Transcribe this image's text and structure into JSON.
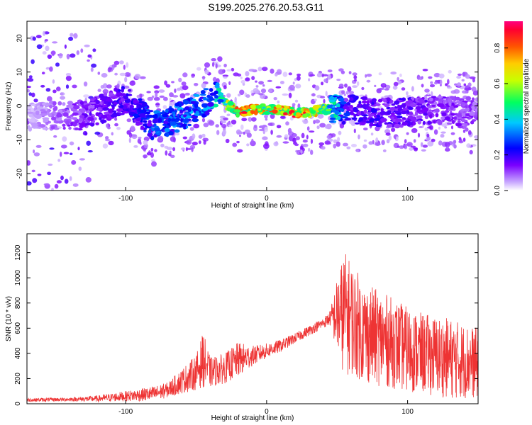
{
  "title": "S199.2025.276.20.53.G11",
  "chart_data": [
    {
      "type": "heatmap",
      "xlabel": "Height of straight line (km)",
      "ylabel": "Frequency (Hz)",
      "xlim": [
        -170,
        150
      ],
      "ylim": [
        -25,
        25
      ],
      "xticks": [
        -100,
        0,
        100
      ],
      "xtick_labels": [
        "-100",
        "0",
        "100"
      ],
      "yticks": [
        20,
        10,
        0,
        -10,
        -20
      ],
      "ytick_labels": [
        "20",
        "10",
        "0",
        "-10",
        "-20"
      ],
      "colorbar": {
        "label": "Normalized spectral amplitude",
        "range": [
          0.0,
          0.95
        ],
        "ticks": [
          0.0,
          0.2,
          0.4,
          0.6,
          0.8
        ],
        "tick_labels": [
          "0.0",
          "0.2",
          "0.4",
          "0.6",
          "0.8"
        ]
      },
      "ridge": {
        "description": "amplitude ridge of frequency vs height",
        "x": [
          -170,
          -130,
          -100,
          -80,
          -60,
          -40,
          -35,
          -30,
          -20,
          -10,
          0,
          10,
          20,
          30,
          40,
          60,
          80,
          100,
          120,
          150
        ],
        "y": [
          -3,
          -3,
          2,
          -6,
          -3,
          2,
          4,
          1,
          -2,
          -1,
          -1,
          -1,
          -2,
          -2,
          -1,
          -1,
          -2,
          -2,
          -1,
          -2
        ],
        "amplitude": [
          0.05,
          0.15,
          0.2,
          0.3,
          0.35,
          0.35,
          0.45,
          0.6,
          0.85,
          0.8,
          0.75,
          0.8,
          0.85,
          0.8,
          0.6,
          0.2,
          0.2,
          0.18,
          0.15,
          0.12
        ]
      }
    },
    {
      "type": "line",
      "xlabel": "Height of straight line (km)",
      "ylabel": "SNR (10 * v/v)",
      "xlim": [
        -170,
        150
      ],
      "ylim": [
        0,
        1350
      ],
      "xticks": [
        -100,
        0,
        100
      ],
      "xtick_labels": [
        "-100",
        "0",
        "100"
      ],
      "yticks": [
        0,
        200,
        400,
        600,
        800,
        1000,
        1200
      ],
      "ytick_labels": [
        "0",
        "200",
        "400",
        "600",
        "800",
        "1000",
        "1200"
      ],
      "color": "#ee3333",
      "envelope": {
        "x": [
          -170,
          -140,
          -120,
          -100,
          -80,
          -70,
          -60,
          -50,
          -45,
          -40,
          -30,
          -20,
          -10,
          0,
          10,
          20,
          30,
          40,
          45,
          50,
          55,
          60,
          70,
          80,
          90,
          100,
          110,
          120,
          130,
          140,
          150
        ],
        "mean": [
          30,
          35,
          40,
          60,
          80,
          110,
          180,
          250,
          350,
          250,
          280,
          350,
          380,
          420,
          460,
          520,
          580,
          640,
          680,
          700,
          720,
          680,
          560,
          520,
          480,
          430,
          400,
          380,
          360,
          340,
          320
        ],
        "amplitude": [
          15,
          15,
          25,
          40,
          60,
          60,
          100,
          140,
          220,
          120,
          120,
          140,
          80,
          60,
          50,
          40,
          40,
          40,
          60,
          300,
          500,
          450,
          400,
          380,
          360,
          340,
          320,
          320,
          320,
          300,
          280
        ]
      }
    }
  ]
}
